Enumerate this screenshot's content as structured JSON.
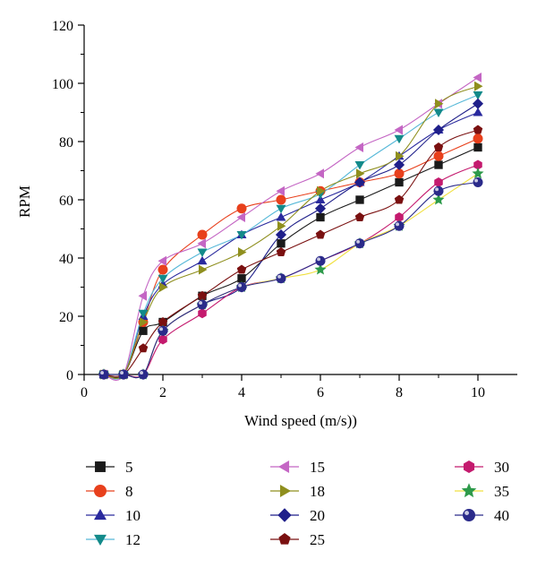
{
  "chart_data": {
    "type": "line",
    "title": "",
    "xlabel": "Wind speed (m/s))",
    "ylabel": "RPM",
    "xlim": [
      0,
      11
    ],
    "ylim": [
      0,
      120
    ],
    "xticks": [
      0,
      2,
      4,
      6,
      8,
      10
    ],
    "yticks": [
      0,
      20,
      40,
      60,
      80,
      100,
      120
    ],
    "grid": false,
    "legend_position": "bottom",
    "series": [
      {
        "name": "5",
        "marker": "square",
        "color": "#1a1a1a",
        "x": [
          0.5,
          1,
          1.5,
          2,
          3,
          4,
          5,
          6,
          7,
          8,
          9,
          10
        ],
        "y": [
          0,
          0,
          15,
          18,
          27,
          33,
          45,
          54,
          60,
          66,
          72,
          78
        ]
      },
      {
        "name": "8",
        "marker": "circle",
        "color": "#e8401c",
        "x": [
          0.5,
          1,
          1.5,
          2,
          3,
          4,
          5,
          6,
          7,
          8,
          9,
          10
        ],
        "y": [
          0,
          0,
          18,
          36,
          48,
          57,
          60,
          63,
          66,
          69,
          75,
          81
        ]
      },
      {
        "name": "10",
        "marker": "triangle-up",
        "color": "#2a2a9e",
        "x": [
          0.5,
          1,
          1.5,
          2,
          3,
          4,
          5,
          6,
          7,
          8,
          9,
          10
        ],
        "y": [
          0,
          0,
          20,
          31,
          39,
          48,
          54,
          60,
          66,
          75,
          84,
          90
        ]
      },
      {
        "name": "12",
        "marker": "triangle-down",
        "color": "#138a8a",
        "x": [
          0.5,
          1,
          1.5,
          2,
          3,
          4,
          5,
          6,
          7,
          8,
          9,
          10
        ],
        "y": [
          0,
          0,
          21,
          33,
          42,
          48,
          57,
          62,
          72,
          81,
          90,
          96
        ]
      },
      {
        "name": "15",
        "marker": "triangle-left",
        "color": "#c466c4",
        "x": [
          0.5,
          1,
          1.5,
          2,
          3,
          4,
          5,
          6,
          7,
          8,
          9,
          10
        ],
        "y": [
          0,
          0,
          27,
          39,
          45,
          54,
          63,
          69,
          78,
          84,
          93,
          102
        ]
      },
      {
        "name": "18",
        "marker": "triangle-right",
        "color": "#8f8f1e",
        "x": [
          0.5,
          1,
          1.5,
          2,
          3,
          4,
          5,
          6,
          7,
          8,
          9,
          10
        ],
        "y": [
          0,
          0,
          18,
          30,
          36,
          42,
          51,
          63,
          69,
          75,
          93,
          99
        ]
      },
      {
        "name": "20",
        "marker": "diamond",
        "color": "#1f1f8a",
        "x": [
          0.5,
          1,
          1.5,
          2,
          3,
          4,
          5,
          6,
          7,
          8,
          9,
          10
        ],
        "y": [
          0,
          0,
          0,
          15,
          24,
          30,
          48,
          57,
          66,
          72,
          84,
          93
        ]
      },
      {
        "name": "25",
        "marker": "pentagon",
        "color": "#7a1010",
        "x": [
          0.5,
          1,
          1.5,
          2,
          3,
          4,
          5,
          6,
          7,
          8,
          9,
          10
        ],
        "y": [
          0,
          0,
          9,
          18,
          27,
          36,
          42,
          48,
          54,
          60,
          78,
          84
        ]
      },
      {
        "name": "30",
        "marker": "hexagon",
        "color": "#c41a6e",
        "x": [
          0.5,
          1,
          1.5,
          2,
          3,
          4,
          5,
          6,
          7,
          8,
          9,
          10
        ],
        "y": [
          0,
          0,
          0,
          12,
          21,
          30,
          33,
          39,
          45,
          54,
          66,
          72
        ]
      },
      {
        "name": "35",
        "marker": "star",
        "color": "#2d9a4a",
        "x": [
          0.5,
          1,
          1.5,
          2,
          3,
          4,
          5,
          6,
          7,
          8,
          9,
          10
        ],
        "y": [
          0,
          0,
          0,
          15,
          24,
          30,
          33,
          36,
          45,
          51,
          60,
          69
        ]
      },
      {
        "name": "40",
        "marker": "sphere",
        "color": "#2a2a8a",
        "x": [
          0.5,
          1,
          1.5,
          2,
          3,
          4,
          5,
          6,
          7,
          8,
          9,
          10
        ],
        "y": [
          0,
          0,
          0,
          15,
          24,
          30,
          33,
          39,
          45,
          51,
          63,
          66
        ]
      }
    ],
    "curve_colors": [
      "#1a1a1a",
      "#e8401c",
      "#2a2a9e",
      "#56b8d8",
      "#c466c4",
      "#8f8f1e",
      "#1f1f8a",
      "#7a1010",
      "#c41a6e",
      "#f0e040",
      "#2a2a8a"
    ]
  }
}
